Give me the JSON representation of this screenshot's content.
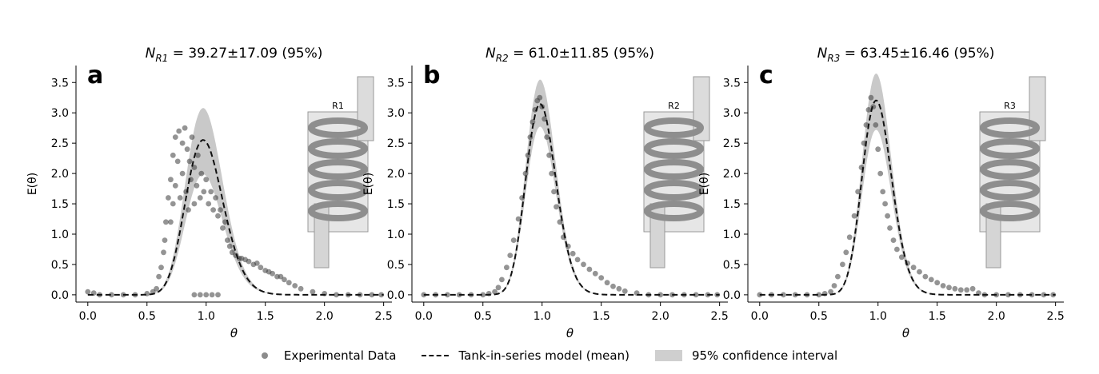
{
  "chart_data": [
    {
      "type": "scatter",
      "panel_letter": "a",
      "title_sub": "R1",
      "title_value": "39.27±17.09 (95%)",
      "inset_label": "R1",
      "xlabel": "θ",
      "ylabel": "E(θ)",
      "xlim": [
        -0.1,
        2.57
      ],
      "ylim": [
        -0.12,
        3.78
      ],
      "xticks": [
        "0.0",
        "0.5",
        "1.0",
        "1.5",
        "2.0",
        "2.5"
      ],
      "yticks": [
        "0.0",
        "0.5",
        "1.0",
        "1.5",
        "2.0",
        "2.5",
        "3.0",
        "3.5"
      ],
      "model_peak": 2.52,
      "model_N": 39.27,
      "band_upper_peak": 3.04,
      "band_lower_peak": 1.96,
      "experimental_points": [
        [
          0.0,
          0.05
        ],
        [
          0.05,
          0.03
        ],
        [
          0.1,
          0.0
        ],
        [
          0.2,
          0.0
        ],
        [
          0.3,
          0.0
        ],
        [
          0.4,
          0.0
        ],
        [
          0.5,
          0.02
        ],
        [
          0.55,
          0.05
        ],
        [
          0.58,
          0.1
        ],
        [
          0.6,
          0.3
        ],
        [
          0.62,
          0.45
        ],
        [
          0.64,
          0.7
        ],
        [
          0.65,
          0.9
        ],
        [
          0.66,
          1.2
        ],
        [
          0.68,
          1.6
        ],
        [
          0.7,
          1.9
        ],
        [
          0.7,
          1.2
        ],
        [
          0.72,
          2.3
        ],
        [
          0.72,
          1.5
        ],
        [
          0.74,
          2.6
        ],
        [
          0.74,
          1.8
        ],
        [
          0.76,
          2.2
        ],
        [
          0.77,
          2.7
        ],
        [
          0.78,
          1.6
        ],
        [
          0.8,
          2.5
        ],
        [
          0.8,
          2.0
        ],
        [
          0.82,
          2.75
        ],
        [
          0.83,
          1.7
        ],
        [
          0.84,
          2.4
        ],
        [
          0.85,
          1.4
        ],
        [
          0.86,
          2.2
        ],
        [
          0.87,
          1.9
        ],
        [
          0.88,
          2.6
        ],
        [
          0.9,
          2.1
        ],
        [
          0.9,
          1.5
        ],
        [
          0.92,
          1.8
        ],
        [
          0.93,
          2.3
        ],
        [
          0.95,
          1.6
        ],
        [
          0.96,
          2.0
        ],
        [
          0.98,
          1.7
        ],
        [
          1.0,
          1.9
        ],
        [
          1.02,
          1.5
        ],
        [
          1.04,
          1.7
        ],
        [
          1.06,
          1.4
        ],
        [
          1.08,
          1.6
        ],
        [
          1.1,
          1.3
        ],
        [
          1.12,
          1.4
        ],
        [
          1.14,
          1.1
        ],
        [
          1.16,
          1.2
        ],
        [
          1.18,
          0.9
        ],
        [
          1.2,
          0.8
        ],
        [
          1.22,
          0.7
        ],
        [
          1.25,
          0.65
        ],
        [
          1.28,
          0.6
        ],
        [
          1.3,
          0.6
        ],
        [
          1.33,
          0.58
        ],
        [
          1.36,
          0.55
        ],
        [
          1.4,
          0.5
        ],
        [
          1.43,
          0.52
        ],
        [
          1.46,
          0.45
        ],
        [
          1.5,
          0.4
        ],
        [
          1.53,
          0.38
        ],
        [
          1.56,
          0.35
        ],
        [
          1.6,
          0.3
        ],
        [
          1.63,
          0.3
        ],
        [
          1.66,
          0.25
        ],
        [
          1.7,
          0.2
        ],
        [
          1.75,
          0.15
        ],
        [
          1.8,
          0.1
        ],
        [
          1.9,
          0.05
        ],
        [
          2.0,
          0.02
        ],
        [
          2.1,
          0.0
        ],
        [
          2.2,
          0.0
        ],
        [
          2.3,
          0.0
        ],
        [
          2.4,
          0.0
        ],
        [
          2.48,
          0.0
        ],
        [
          0.9,
          0.0
        ],
        [
          0.95,
          0.0
        ],
        [
          1.0,
          0.0
        ],
        [
          1.05,
          0.0
        ],
        [
          1.1,
          0.0
        ]
      ]
    },
    {
      "type": "scatter",
      "panel_letter": "b",
      "title_sub": "R2",
      "title_value": "61.0±11.85 (95%)",
      "inset_label": "R2",
      "xlabel": "θ",
      "ylabel": "E(θ)",
      "xlim": [
        -0.1,
        2.57
      ],
      "ylim": [
        -0.12,
        3.78
      ],
      "xticks": [
        "0.0",
        "0.5",
        "1.0",
        "1.5",
        "2.0",
        "2.5"
      ],
      "yticks": [
        "0.0",
        "0.5",
        "1.0",
        "1.5",
        "2.0",
        "2.5",
        "3.0",
        "3.5"
      ],
      "model_peak": 3.12,
      "model_N": 61.0,
      "band_upper_peak": 3.52,
      "band_lower_peak": 2.75,
      "experimental_points": [
        [
          0.0,
          0.0
        ],
        [
          0.1,
          0.0
        ],
        [
          0.2,
          0.0
        ],
        [
          0.3,
          0.0
        ],
        [
          0.4,
          0.0
        ],
        [
          0.5,
          0.0
        ],
        [
          0.55,
          0.02
        ],
        [
          0.6,
          0.05
        ],
        [
          0.63,
          0.12
        ],
        [
          0.66,
          0.25
        ],
        [
          0.7,
          0.45
        ],
        [
          0.73,
          0.65
        ],
        [
          0.76,
          0.9
        ],
        [
          0.8,
          1.25
        ],
        [
          0.83,
          1.6
        ],
        [
          0.86,
          2.0
        ],
        [
          0.88,
          2.3
        ],
        [
          0.9,
          2.6
        ],
        [
          0.92,
          2.85
        ],
        [
          0.94,
          3.05
        ],
        [
          0.96,
          3.2
        ],
        [
          0.98,
          3.25
        ],
        [
          1.0,
          3.1
        ],
        [
          1.02,
          2.9
        ],
        [
          1.04,
          2.6
        ],
        [
          1.06,
          2.3
        ],
        [
          1.08,
          2.0
        ],
        [
          1.1,
          1.7
        ],
        [
          1.12,
          1.45
        ],
        [
          1.15,
          1.2
        ],
        [
          1.18,
          0.95
        ],
        [
          1.22,
          0.8
        ],
        [
          1.26,
          0.68
        ],
        [
          1.3,
          0.58
        ],
        [
          1.35,
          0.5
        ],
        [
          1.4,
          0.42
        ],
        [
          1.45,
          0.35
        ],
        [
          1.5,
          0.28
        ],
        [
          1.55,
          0.2
        ],
        [
          1.6,
          0.14
        ],
        [
          1.65,
          0.1
        ],
        [
          1.7,
          0.06
        ],
        [
          1.8,
          0.03
        ],
        [
          1.9,
          0.0
        ],
        [
          2.0,
          0.0
        ],
        [
          2.1,
          0.0
        ],
        [
          2.2,
          0.0
        ],
        [
          2.3,
          0.0
        ],
        [
          2.4,
          0.0
        ],
        [
          2.48,
          0.0
        ]
      ]
    },
    {
      "type": "scatter",
      "panel_letter": "c",
      "title_sub": "R3",
      "title_value": "63.45±16.46 (95%)",
      "inset_label": "R3",
      "xlabel": "θ",
      "ylabel": "E(θ)",
      "xlim": [
        -0.1,
        2.57
      ],
      "ylim": [
        -0.12,
        3.78
      ],
      "xticks": [
        "0.0",
        "0.5",
        "1.0",
        "1.5",
        "2.0",
        "2.5"
      ],
      "yticks": [
        "0.0",
        "0.5",
        "1.0",
        "1.5",
        "2.0",
        "2.5",
        "3.0",
        "3.5"
      ],
      "model_peak": 3.18,
      "model_N": 63.45,
      "band_upper_peak": 3.62,
      "band_lower_peak": 2.7,
      "experimental_points": [
        [
          0.0,
          0.0
        ],
        [
          0.1,
          0.0
        ],
        [
          0.2,
          0.0
        ],
        [
          0.3,
          0.0
        ],
        [
          0.4,
          0.0
        ],
        [
          0.5,
          0.0
        ],
        [
          0.55,
          0.02
        ],
        [
          0.6,
          0.05
        ],
        [
          0.63,
          0.15
        ],
        [
          0.66,
          0.3
        ],
        [
          0.7,
          0.5
        ],
        [
          0.73,
          0.7
        ],
        [
          0.76,
          0.95
        ],
        [
          0.8,
          1.3
        ],
        [
          0.83,
          1.7
        ],
        [
          0.86,
          2.1
        ],
        [
          0.88,
          2.5
        ],
        [
          0.9,
          2.8
        ],
        [
          0.92,
          3.05
        ],
        [
          0.94,
          3.25
        ],
        [
          0.96,
          3.1
        ],
        [
          0.98,
          2.8
        ],
        [
          1.0,
          2.4
        ],
        [
          1.02,
          2.0
        ],
        [
          1.04,
          1.7
        ],
        [
          1.06,
          1.5
        ],
        [
          1.08,
          1.3
        ],
        [
          1.1,
          1.1
        ],
        [
          1.13,
          0.9
        ],
        [
          1.16,
          0.75
        ],
        [
          1.2,
          0.62
        ],
        [
          1.25,
          0.52
        ],
        [
          1.3,
          0.45
        ],
        [
          1.35,
          0.38
        ],
        [
          1.4,
          0.3
        ],
        [
          1.45,
          0.25
        ],
        [
          1.5,
          0.2
        ],
        [
          1.55,
          0.15
        ],
        [
          1.6,
          0.12
        ],
        [
          1.65,
          0.1
        ],
        [
          1.7,
          0.08
        ],
        [
          1.75,
          0.08
        ],
        [
          1.8,
          0.1
        ],
        [
          1.85,
          0.03
        ],
        [
          1.9,
          0.0
        ],
        [
          2.0,
          0.0
        ],
        [
          2.1,
          0.0
        ],
        [
          2.2,
          0.0
        ],
        [
          2.3,
          0.0
        ],
        [
          2.4,
          0.0
        ],
        [
          2.48,
          0.0
        ]
      ]
    }
  ],
  "title_prefix": "N",
  "legend": {
    "experimental": "Experimental Data",
    "model": "Tank-in-series model (mean)",
    "band": "95% confidence interval"
  },
  "colors": {
    "points": "#3c3c3c",
    "band": "#c9c9c9",
    "model": "#111111",
    "inset_body": "#e6e6e6",
    "coil": "#8e8e8e"
  }
}
